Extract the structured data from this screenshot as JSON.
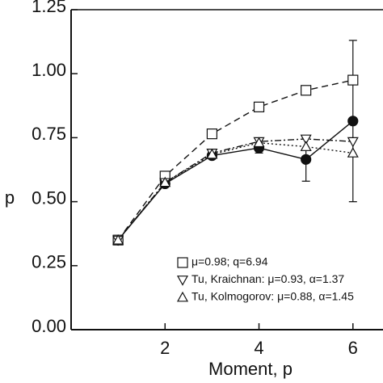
{
  "chart_data": {
    "type": "line",
    "x_label": "Moment, p",
    "y_label": "p",
    "x": [
      1,
      2,
      3,
      4,
      5,
      6
    ],
    "series": [
      {
        "marker": "circle",
        "dash": "solid",
        "color": "#111",
        "values": [
          0.35,
          0.57,
          0.68,
          0.71,
          0.665,
          0.815
        ],
        "errors": [
          null,
          null,
          null,
          0.02,
          0.085,
          0.315
        ]
      },
      {
        "name": "μ=0.98; q=6.94",
        "marker": "square",
        "dash": "dashed",
        "color": "#111",
        "values": [
          0.35,
          0.6,
          0.765,
          0.87,
          0.935,
          0.975
        ]
      },
      {
        "name": "Tu, Kraichnan: μ=0.93, α=1.37",
        "marker": "triangle-down",
        "dash": "dashdot",
        "color": "#111",
        "values": [
          0.35,
          0.575,
          0.69,
          0.735,
          0.745,
          0.735
        ]
      },
      {
        "name": "Tu, Kolmogorov: μ=0.88, α=1.45",
        "marker": "triangle-up",
        "dash": "dotted",
        "color": "#111",
        "values": [
          0.35,
          0.575,
          0.685,
          0.73,
          0.715,
          0.69
        ]
      }
    ],
    "xlim": [
      0,
      6.64
    ],
    "ylim": [
      0,
      1.25
    ],
    "xticks": [
      2,
      4,
      6
    ],
    "yticks": [
      {
        "value": 0,
        "label": "0.00"
      },
      {
        "value": 0.25,
        "label": "0.25"
      },
      {
        "value": 0.5,
        "label": "0.50"
      },
      {
        "value": 0.75,
        "label": "0.75"
      },
      {
        "value": 1,
        "label": "1.00"
      },
      {
        "value": 1.25,
        "label": "1.25"
      }
    ]
  }
}
